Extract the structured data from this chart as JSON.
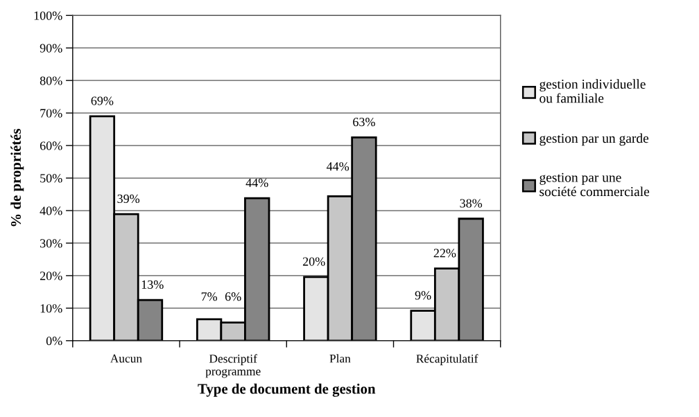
{
  "chart_data": {
    "type": "bar",
    "xlabel": "Type de document de gestion",
    "ylabel": "% de propriétés",
    "categories": [
      "Aucun",
      "Descriptif\nprogramme",
      "Plan",
      "Récapitulatif"
    ],
    "series": [
      {
        "name": "gestion individuelle\nou familiale",
        "color": "#e4e4e4",
        "values": [
          69.0,
          6.6,
          19.6,
          9.2
        ],
        "value_labels": [
          "69%",
          "7%",
          "20%",
          "9%"
        ]
      },
      {
        "name": "gestion par un garde",
        "color": "#c6c6c6",
        "values": [
          38.9,
          5.6,
          44.4,
          22.2
        ],
        "value_labels": [
          "39%",
          "6%",
          "44%",
          "22%"
        ]
      },
      {
        "name": "gestion par une\nsociété commerciale",
        "color": "#858585",
        "values": [
          12.5,
          43.8,
          62.5,
          37.5
        ],
        "value_labels": [
          "13%",
          "44%",
          "63%",
          "38%"
        ]
      }
    ],
    "ylim": [
      0,
      100
    ],
    "yticks": [
      {
        "value": 0,
        "label": "0%"
      },
      {
        "value": 10,
        "label": "10%"
      },
      {
        "value": 20,
        "label": "20%"
      },
      {
        "value": 30,
        "label": "30%"
      },
      {
        "value": 40,
        "label": "40%"
      },
      {
        "value": 50,
        "label": "50%"
      },
      {
        "value": 60,
        "label": "60%"
      },
      {
        "value": 70,
        "label": "70%"
      },
      {
        "value": 80,
        "label": "80%"
      },
      {
        "value": 90,
        "label": "90%"
      },
      {
        "value": 100,
        "label": "100%"
      }
    ],
    "grid": "y",
    "legend": "right"
  }
}
